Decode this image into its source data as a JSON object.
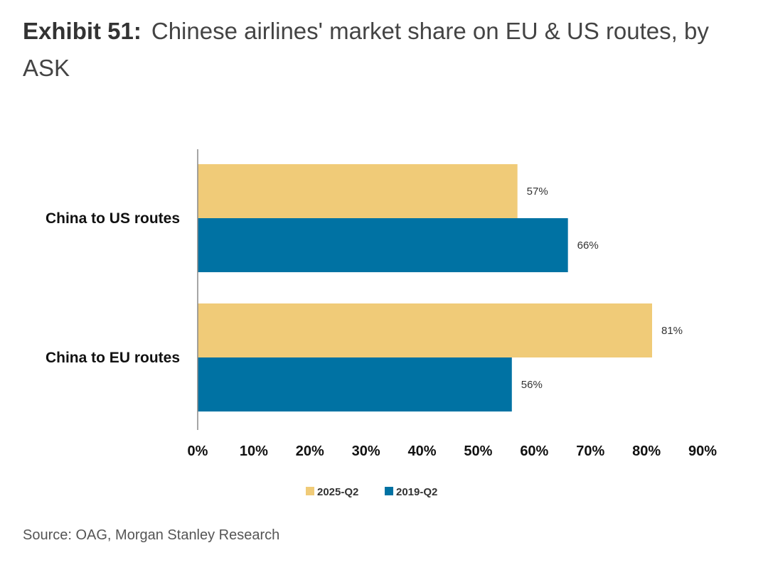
{
  "header": {
    "exhibit": "Exhibit 51:",
    "title": "Chinese airlines' market share on EU & US routes, by ASK"
  },
  "source": "Source: OAG, Morgan Stanley Research",
  "chart_data": {
    "type": "bar",
    "orientation": "horizontal",
    "categories": [
      "China to US routes",
      "China to EU routes"
    ],
    "series": [
      {
        "name": "2025-Q2",
        "values": [
          57,
          81
        ],
        "labels": [
          "57%",
          "81%"
        ],
        "color": "#F0CB78"
      },
      {
        "name": "2019-Q2",
        "values": [
          66,
          56
        ],
        "labels": [
          "66%",
          "56%"
        ],
        "color": "#0072A3"
      }
    ],
    "xlim": [
      0,
      90
    ],
    "xticks": [
      0,
      10,
      20,
      30,
      40,
      50,
      60,
      70,
      80,
      90
    ],
    "xtick_labels": [
      "0%",
      "10%",
      "20%",
      "30%",
      "40%",
      "50%",
      "60%",
      "70%",
      "80%",
      "90%"
    ],
    "grid": false,
    "legend_position": "bottom"
  }
}
